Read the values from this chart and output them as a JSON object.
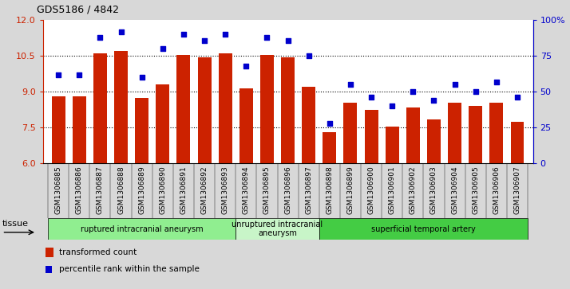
{
  "title": "GDS5186 / 4842",
  "samples": [
    "GSM1306885",
    "GSM1306886",
    "GSM1306887",
    "GSM1306888",
    "GSM1306889",
    "GSM1306890",
    "GSM1306891",
    "GSM1306892",
    "GSM1306893",
    "GSM1306894",
    "GSM1306895",
    "GSM1306896",
    "GSM1306897",
    "GSM1306898",
    "GSM1306899",
    "GSM1306900",
    "GSM1306901",
    "GSM1306902",
    "GSM1306903",
    "GSM1306904",
    "GSM1306905",
    "GSM1306906",
    "GSM1306907"
  ],
  "bar_values": [
    8.8,
    8.8,
    10.6,
    10.7,
    8.75,
    9.3,
    10.55,
    10.45,
    10.6,
    9.15,
    10.55,
    10.45,
    9.2,
    7.3,
    8.55,
    8.25,
    7.55,
    8.35,
    7.85,
    8.55,
    8.4,
    8.55,
    7.75
  ],
  "dot_values_pct": [
    62,
    62,
    88,
    92,
    60,
    80,
    90,
    86,
    90,
    68,
    88,
    86,
    75,
    28,
    55,
    46,
    40,
    50,
    44,
    55,
    50,
    57,
    46
  ],
  "bar_color": "#cc2200",
  "dot_color": "#0000cc",
  "ylim_left": [
    6,
    12
  ],
  "ylim_right": [
    0,
    100
  ],
  "yticks_left": [
    6,
    7.5,
    9,
    10.5,
    12
  ],
  "yticks_right": [
    0,
    25,
    50,
    75,
    100
  ],
  "ytick_labels_right": [
    "0",
    "25",
    "50",
    "75",
    "100%"
  ],
  "groups": [
    {
      "label": "ruptured intracranial aneurysm",
      "start": 0,
      "end": 9,
      "color": "#90ee90"
    },
    {
      "label": "unruptured intracranial\naneurysm",
      "start": 9,
      "end": 13,
      "color": "#c8f5c8"
    },
    {
      "label": "superficial temporal artery",
      "start": 13,
      "end": 23,
      "color": "#44cc44"
    }
  ],
  "tissue_label": "tissue",
  "legend_bar_label": "transformed count",
  "legend_dot_label": "percentile rank within the sample",
  "background_color": "#d8d8d8",
  "plot_bg_color": "#ffffff",
  "xtick_bg_color": "#d0d0d0"
}
